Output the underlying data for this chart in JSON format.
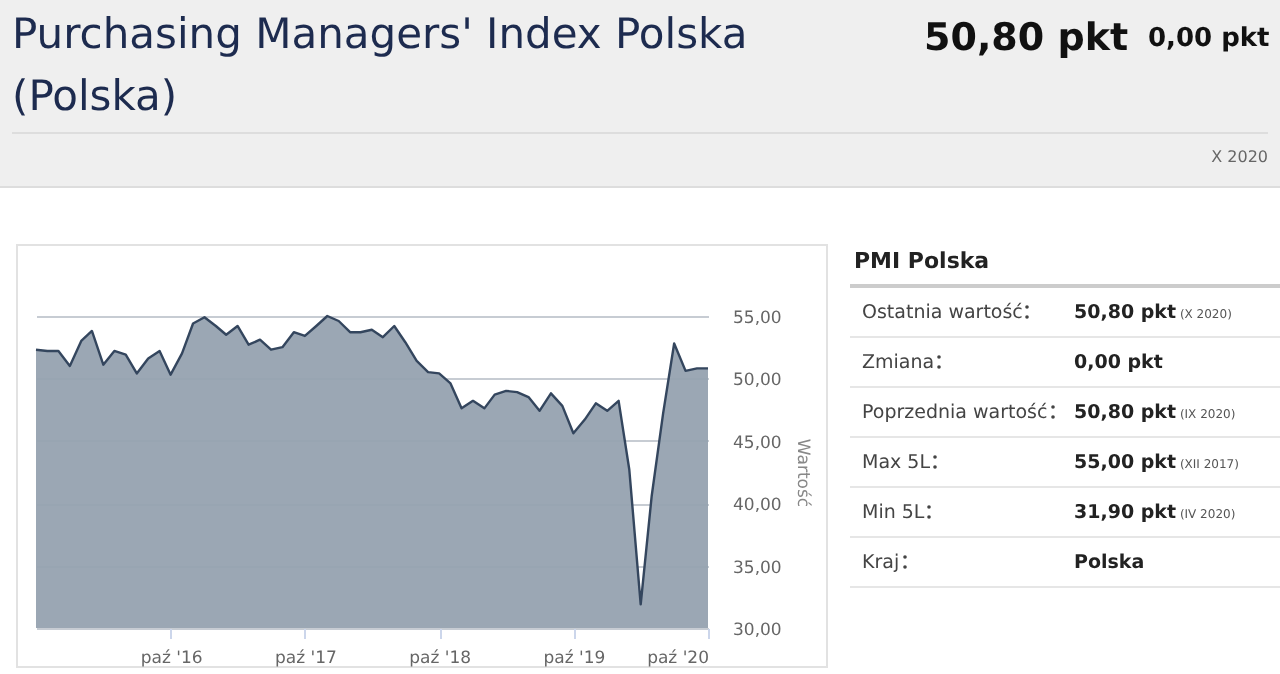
{
  "chart_data": [
    {
      "type": "other",
      "title": "Purchasing Managers' Index Polska (Polska)",
      "annotations": [
        "50,80 pkt",
        "0,00 pkt",
        "X 2020"
      ]
    },
    {
      "type": "area",
      "color": "#96a2b0",
      "ylabel": "Wartość",
      "grid": "y",
      "x": [
        "2015-10",
        "2015-11",
        "2015-12",
        "2016-01",
        "2016-02",
        "2016-03",
        "2016-04",
        "2016-05",
        "2016-06",
        "2016-07",
        "2016-08",
        "2016-09",
        "2016-10",
        "2016-11",
        "2016-12",
        "2017-01",
        "2017-02",
        "2017-03",
        "2017-04",
        "2017-05",
        "2017-06",
        "2017-07",
        "2017-08",
        "2017-09",
        "2017-10",
        "2017-11",
        "2017-12",
        "2018-01",
        "2018-02",
        "2018-03",
        "2018-04",
        "2018-05",
        "2018-06",
        "2018-07",
        "2018-08",
        "2018-09",
        "2018-10",
        "2018-11",
        "2018-12",
        "2019-01",
        "2019-02",
        "2019-03",
        "2019-04",
        "2019-05",
        "2019-06",
        "2019-07",
        "2019-08",
        "2019-09",
        "2019-10",
        "2019-11",
        "2019-12",
        "2020-01",
        "2020-02",
        "2020-03",
        "2020-04",
        "2020-05",
        "2020-06",
        "2020-07",
        "2020-08",
        "2020-09",
        "2020-10"
      ],
      "values": [
        52.3,
        52.2,
        52.2,
        51.0,
        53.0,
        53.8,
        51.1,
        52.2,
        51.9,
        50.4,
        51.6,
        52.2,
        50.3,
        52.0,
        54.4,
        54.9,
        54.2,
        53.5,
        54.2,
        52.7,
        53.1,
        52.3,
        52.5,
        53.7,
        53.4,
        54.2,
        55.0,
        54.6,
        53.7,
        53.7,
        53.9,
        53.3,
        54.2,
        52.9,
        51.4,
        50.5,
        50.4,
        49.6,
        47.6,
        48.2,
        47.6,
        48.7,
        49.0,
        48.9,
        48.5,
        47.4,
        48.8,
        47.8,
        45.6,
        46.7,
        48.0,
        47.4,
        48.2,
        42.7,
        31.9,
        40.6,
        47.2,
        52.8,
        50.6,
        50.8,
        50.8
      ],
      "xlim": [
        "2015-10",
        "2020-10"
      ],
      "xticks": [
        {
          "value": "2016-10",
          "label": "paź '16"
        },
        {
          "value": "2017-10",
          "label": "paź '17"
        },
        {
          "value": "2018-10",
          "label": "paź '18"
        },
        {
          "value": "2019-10",
          "label": "paź '19"
        },
        {
          "value": "2020-10",
          "label": "paź '20"
        }
      ],
      "ylim": [
        30,
        55
      ],
      "yticks": [
        {
          "value": 30,
          "label": "30,00"
        },
        {
          "value": 35,
          "label": "35,00"
        },
        {
          "value": 40,
          "label": "40,00"
        },
        {
          "value": 45,
          "label": "45,00"
        },
        {
          "value": 50,
          "label": "50,00"
        },
        {
          "value": 55,
          "label": "55,00"
        }
      ]
    },
    {
      "type": "other",
      "title": "PMI Polska",
      "categories": [
        "Ostatnia wartość",
        "Zmiana",
        "Poprzednia wartość",
        "Max 5L",
        "Min 5L",
        "Kraj"
      ],
      "value_labels": [
        "50,80 pkt (X 2020)",
        "0,00 pkt",
        "50,80 pkt (IX 2020)",
        "55,00 pkt (XII 2017)",
        "31,90 pkt (IV 2020)",
        "Polska"
      ]
    }
  ]
}
